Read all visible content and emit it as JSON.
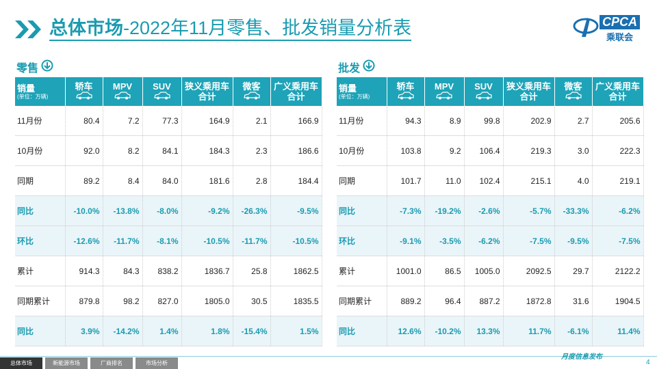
{
  "header": {
    "title_bold": "总体市场",
    "title_rest": "-2022年11月零售、批发销量分析表",
    "logo_text": "CPCA",
    "logo_sub": "乘联会"
  },
  "columns": [
    [
      "轿车"
    ],
    [
      "MPV"
    ],
    [
      "SUV"
    ],
    [
      "狭义乘用车",
      "合计"
    ],
    [
      "微客"
    ],
    [
      "广义乘用车",
      "合计"
    ]
  ],
  "row_header": {
    "label": "销量",
    "unit": "(单位：万辆)"
  },
  "tables": [
    {
      "section": "零售",
      "rows": [
        [
          "11月份",
          "80.4",
          "7.2",
          "77.3",
          "164.9",
          "2.1",
          "166.9"
        ],
        [
          "10月份",
          "92.0",
          "8.2",
          "84.1",
          "184.3",
          "2.3",
          "186.6"
        ],
        [
          "同期",
          "89.2",
          "8.4",
          "84.0",
          "181.6",
          "2.8",
          "184.4"
        ],
        [
          "同比",
          "-10.0%",
          "-13.8%",
          "-8.0%",
          "-9.2%",
          "-26.3%",
          "-9.5%"
        ],
        [
          "环比",
          "-12.6%",
          "-11.7%",
          "-8.1%",
          "-10.5%",
          "-11.7%",
          "-10.5%"
        ],
        [
          "累计",
          "914.3",
          "84.3",
          "838.2",
          "1836.7",
          "25.8",
          "1862.5"
        ],
        [
          "同期累计",
          "879.8",
          "98.2",
          "827.0",
          "1805.0",
          "30.5",
          "1835.5"
        ],
        [
          "同比",
          "3.9%",
          "-14.2%",
          "1.4%",
          "1.8%",
          "-15.4%",
          "1.5%"
        ]
      ]
    },
    {
      "section": "批发",
      "rows": [
        [
          "11月份",
          "94.3",
          "8.9",
          "99.8",
          "202.9",
          "2.7",
          "205.6"
        ],
        [
          "10月份",
          "103.8",
          "9.2",
          "106.4",
          "219.3",
          "3.0",
          "222.3"
        ],
        [
          "同期",
          "101.7",
          "11.0",
          "102.4",
          "215.1",
          "4.0",
          "219.1"
        ],
        [
          "同比",
          "-7.3%",
          "-19.2%",
          "-2.6%",
          "-5.7%",
          "-33.3%",
          "-6.2%"
        ],
        [
          "环比",
          "-9.1%",
          "-3.5%",
          "-6.2%",
          "-7.5%",
          "-9.5%",
          "-7.5%"
        ],
        [
          "累计",
          "1001.0",
          "86.5",
          "1005.0",
          "2092.5",
          "29.7",
          "2122.2"
        ],
        [
          "同期累计",
          "889.2",
          "96.4",
          "887.2",
          "1872.8",
          "31.6",
          "1904.5"
        ],
        [
          "同比",
          "12.6%",
          "-10.2%",
          "13.3%",
          "11.7%",
          "-6.1%",
          "11.4%"
        ]
      ]
    }
  ],
  "footer": {
    "tabs": [
      "总体市场",
      "新能源市场",
      "厂商排名",
      "市场分析"
    ],
    "note": "月度信息发布",
    "page": "4"
  }
}
